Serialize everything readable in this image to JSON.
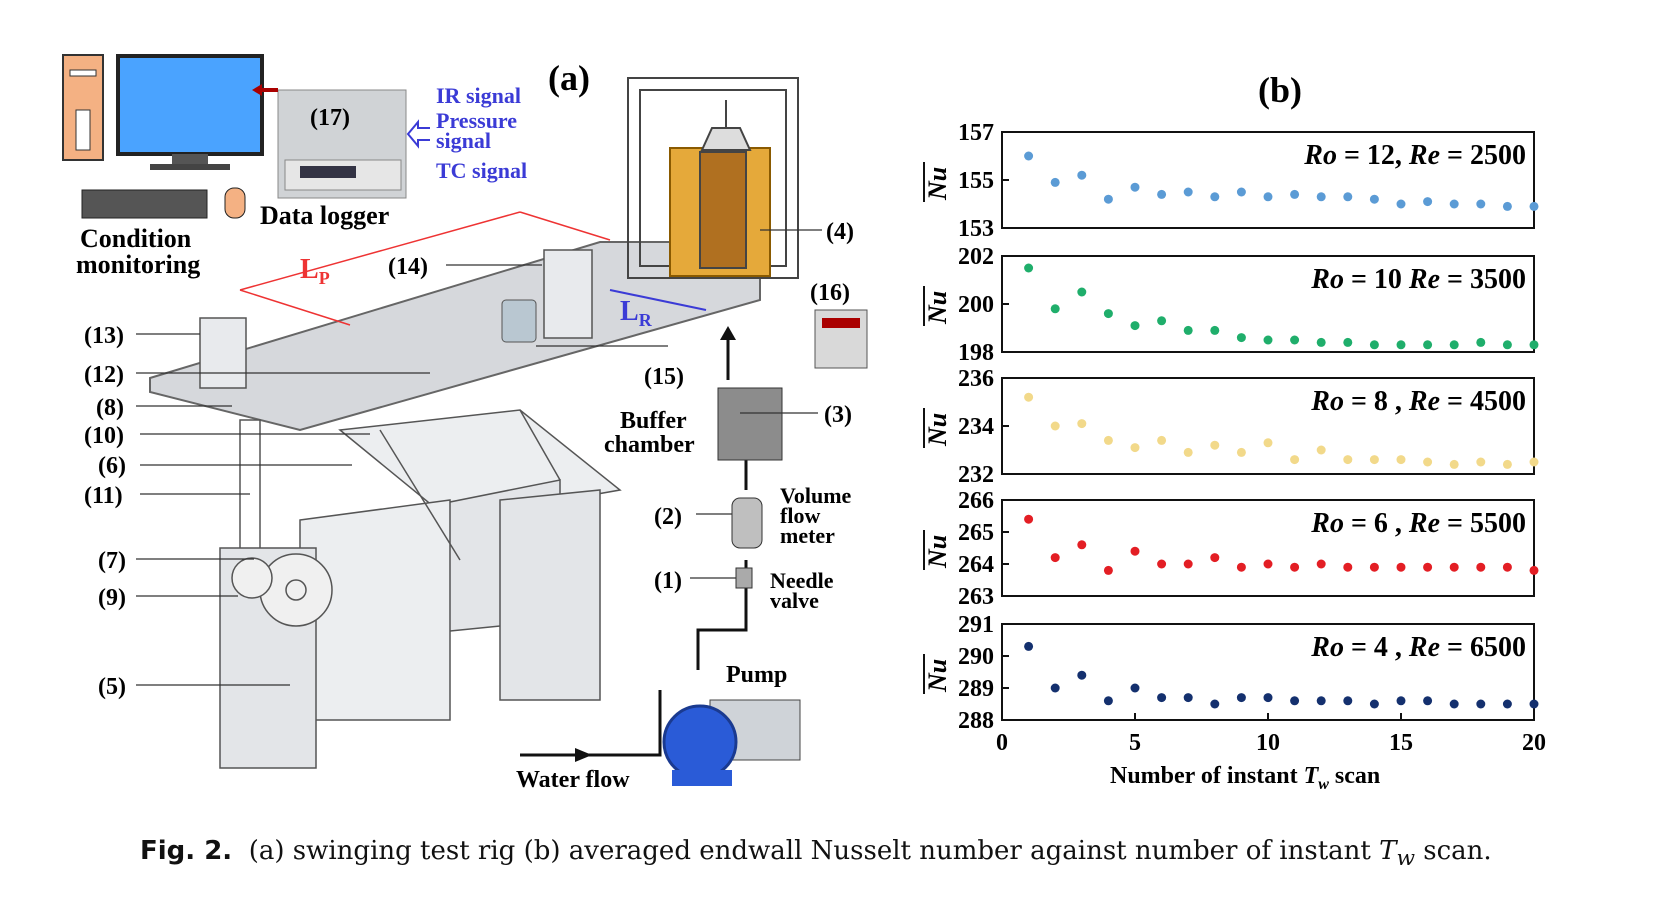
{
  "figure": {
    "panel_a_label": "(a)",
    "panel_b_label": "(b)",
    "rig": {
      "labels": {
        "computer": "Condition",
        "computer2": "monitoring",
        "logger_num": "(17)",
        "logger": "Data logger",
        "ir": "IR signal",
        "pressure": "Pressure",
        "pressure2": "signal",
        "tc": "TC signal",
        "lp": "L",
        "lp_sub": "P",
        "lr": "L",
        "lr_sub": "R",
        "c1": "(1)",
        "c2": "(2)",
        "c3": "(3)",
        "c4": "(4)",
        "c5": "(5)",
        "c6": "(6)",
        "c7": "(7)",
        "c8": "(8)",
        "c9": "(9)",
        "c10": "(10)",
        "c11": "(11)",
        "c12": "(12)",
        "c13": "(13)",
        "c14": "(14)",
        "c15": "(15)",
        "c16": "(16)",
        "buffer": "Buffer",
        "buffer2": "chamber",
        "flow": "Volume",
        "flow2": "flow",
        "flow3": "meter",
        "needle": "Needle",
        "needle2": "valve",
        "pump": "Pump",
        "water": "Water flow"
      }
    },
    "caption": {
      "fig": "Fig. 2.",
      "text": "(a) swinging test rig (b) averaged endwall Nusselt number against number of instant ",
      "tw_var": "T",
      "tw_sub": "w",
      "end": " scan."
    }
  },
  "chart_data": {
    "type": "scatter",
    "xlabel": "Number of instant T_w scan",
    "ylabel": "Nu (overbar)",
    "xlim": [
      0,
      20
    ],
    "x_ticks": [
      "0",
      "5",
      "10",
      "15",
      "20"
    ],
    "x": [
      1,
      2,
      3,
      4,
      5,
      6,
      7,
      8,
      9,
      10,
      11,
      12,
      13,
      14,
      15,
      16,
      17,
      18,
      19,
      20
    ],
    "panels": [
      {
        "ro": "12,",
        "re": "2500",
        "ylim": [
          153,
          157
        ],
        "y_ticks": [
          "157",
          "155",
          "153"
        ],
        "color": "#5b9bd5",
        "values": [
          156.0,
          154.9,
          155.2,
          154.2,
          154.7,
          154.4,
          154.5,
          154.3,
          154.5,
          154.3,
          154.4,
          154.3,
          154.3,
          154.2,
          154.0,
          154.1,
          154.0,
          154.0,
          153.9,
          153.9
        ]
      },
      {
        "ro": "10",
        "re": "3500",
        "ylim": [
          198,
          202
        ],
        "y_ticks": [
          "202",
          "200",
          "198"
        ],
        "color": "#1fae6b",
        "values": [
          201.5,
          199.8,
          200.5,
          199.6,
          199.1,
          199.3,
          198.9,
          198.9,
          198.6,
          198.5,
          198.5,
          198.4,
          198.4,
          198.3,
          198.3,
          198.3,
          198.3,
          198.4,
          198.3,
          198.3
        ]
      },
      {
        "ro": "8 ,",
        "re": "4500",
        "ylim": [
          232,
          236
        ],
        "y_ticks": [
          "236",
          "234",
          "232"
        ],
        "color": "#f2d98a",
        "values": [
          235.2,
          234.0,
          234.1,
          233.4,
          233.1,
          233.4,
          232.9,
          233.2,
          232.9,
          233.3,
          232.6,
          233.0,
          232.6,
          232.6,
          232.6,
          232.5,
          232.4,
          232.5,
          232.4,
          232.5
        ]
      },
      {
        "ro": "6 ,",
        "re": "5500",
        "ylim": [
          263,
          266
        ],
        "y_ticks": [
          "266",
          "265",
          "264",
          "263"
        ],
        "color": "#e31e24",
        "values": [
          265.4,
          264.2,
          264.6,
          263.8,
          264.4,
          264.0,
          264.0,
          264.2,
          263.9,
          264.0,
          263.9,
          264.0,
          263.9,
          263.9,
          263.9,
          263.9,
          263.9,
          263.9,
          263.9,
          263.8
        ]
      },
      {
        "ro": "4 ,",
        "re": "6500",
        "ylim": [
          288,
          291
        ],
        "y_ticks": [
          "291",
          "290",
          "289",
          "288"
        ],
        "color": "#14306e",
        "values": [
          290.3,
          289.0,
          289.4,
          288.6,
          289.0,
          288.7,
          288.7,
          288.5,
          288.7,
          288.7,
          288.6,
          288.6,
          288.6,
          288.5,
          288.6,
          288.6,
          288.5,
          288.5,
          288.5,
          288.5
        ]
      }
    ]
  }
}
